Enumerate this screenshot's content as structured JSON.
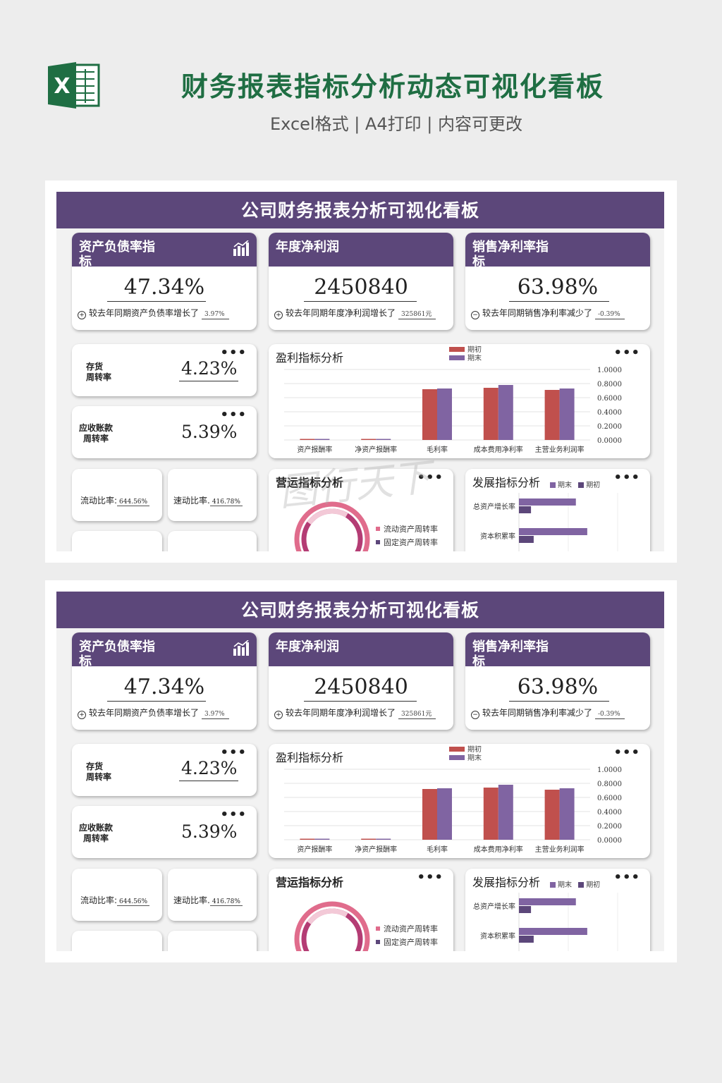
{
  "header": {
    "title": "财务报表指标分析动态可视化看板",
    "subtitle": "Excel格式 | A4打印 | 内容可更改",
    "logo_letter": "X"
  },
  "watermark": "图行天下",
  "colors": {
    "header_purple": "#5c477a",
    "bar_initial": "#c0504d",
    "bar_end": "#8064a2",
    "title_green": "#1f6e43",
    "donut_pink": "#e06c8c",
    "donut_magenta": "#b43c74"
  },
  "dashboard": {
    "title": "公司财务报表分析可视化看板",
    "kpis": [
      {
        "title": "资产负债率指标",
        "value": "47.34%",
        "sym": "+",
        "note": "较去年同期资产负债率增长了",
        "delta": "3.97%",
        "icon": "bar-chart-icon"
      },
      {
        "title": "年度净利润",
        "value": "2450840",
        "sym": "+",
        "note": "较去年同期年度净利润增长了",
        "delta": "325861元"
      },
      {
        "title": "销售净利率指标",
        "value": "63.98%",
        "sym": "−",
        "note": "较去年同期销售净利率减少了",
        "delta": "-0.39%"
      }
    ],
    "turnover": [
      {
        "label_line1": "存货",
        "label_line2": "周转率",
        "value": "4.23%"
      },
      {
        "label_line1": "应收账款",
        "label_line2": "周转率",
        "value": "5.39%"
      }
    ],
    "ratios": [
      {
        "label": "流动比率:",
        "value": "644.56%"
      },
      {
        "label": "速动比率.",
        "value": "416.78%"
      }
    ],
    "more_icon": "•••",
    "operating": {
      "title": "营运指标分析",
      "legend": [
        "流动资产周转率",
        "固定资产周转率"
      ]
    },
    "development": {
      "title": "发展指标分析",
      "legend": [
        "期末",
        "期初"
      ],
      "categories": [
        "总资产增长率",
        "资本积累率"
      ]
    }
  },
  "chart_data": [
    {
      "type": "bar",
      "title": "盈利指标分析",
      "categories": [
        "资产报酬率",
        "净资产报酬率",
        "毛利率",
        "成本费用净利率",
        "主营业务利润率"
      ],
      "series": [
        {
          "name": "期初",
          "values": [
            0.01,
            0.005,
            0.72,
            0.74,
            0.71
          ]
        },
        {
          "name": "期末",
          "values": [
            0.015,
            0.01,
            0.73,
            0.78,
            0.73
          ]
        }
      ],
      "ylim": [
        0,
        1
      ],
      "yticks": [
        "1.0000",
        "0.8000",
        "0.6000",
        "0.4000",
        "0.2000",
        "0.0000"
      ],
      "legend": "top-center",
      "grid": true
    },
    {
      "type": "bar",
      "title": "发展指标分析",
      "orientation": "horizontal",
      "categories": [
        "总资产增长率",
        "资本积累率"
      ],
      "series": [
        {
          "name": "期末",
          "values": [
            0.85,
            1.02
          ]
        },
        {
          "name": "期初",
          "values": [
            0.18,
            0.22
          ]
        }
      ]
    }
  ]
}
